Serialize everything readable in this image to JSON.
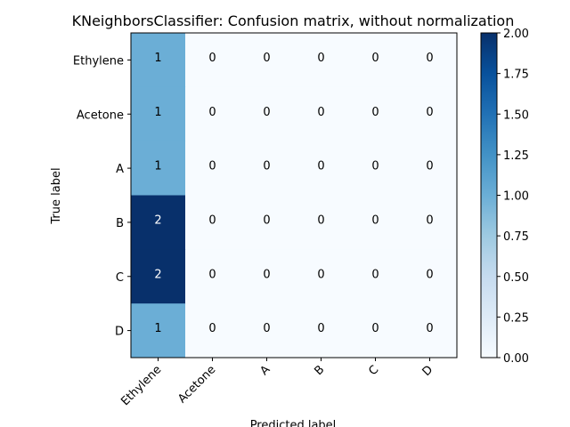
{
  "chart_data": {
    "type": "heatmap",
    "title": "KNeighborsClassifier: Confusion matrix, without normalization",
    "xlabel": "Predicted label",
    "ylabel": "True label",
    "x_categories": [
      "Ethylene",
      "Acetone",
      "A",
      "B",
      "C",
      "D"
    ],
    "y_categories": [
      "Ethylene",
      "Acetone",
      "A",
      "B",
      "C",
      "D"
    ],
    "values": [
      [
        1,
        0,
        0,
        0,
        0,
        0
      ],
      [
        1,
        0,
        0,
        0,
        0,
        0
      ],
      [
        1,
        0,
        0,
        0,
        0,
        0
      ],
      [
        2,
        0,
        0,
        0,
        0,
        0
      ],
      [
        2,
        0,
        0,
        0,
        0,
        0
      ],
      [
        1,
        0,
        0,
        0,
        0,
        0
      ]
    ],
    "colormap": "Blues",
    "colorbar": {
      "vmin": 0,
      "vmax": 2,
      "tick_labels": [
        "0.00",
        "0.25",
        "0.50",
        "0.75",
        "1.00",
        "1.25",
        "1.50",
        "1.75",
        "2.00"
      ]
    }
  }
}
